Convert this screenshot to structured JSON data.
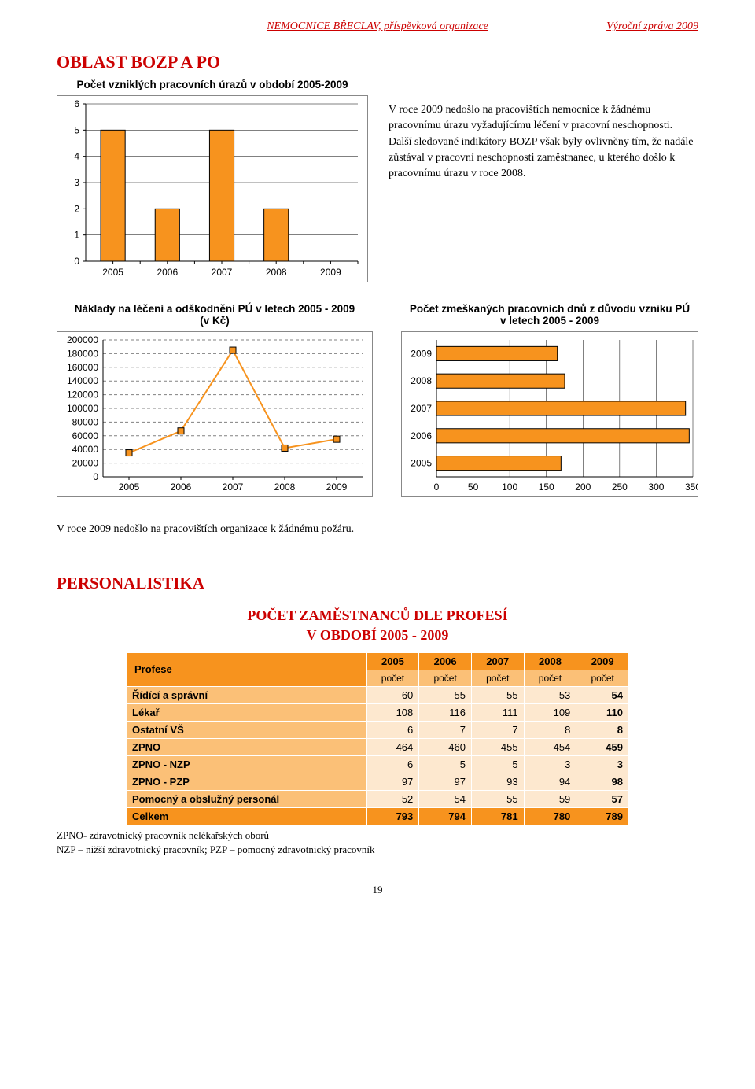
{
  "header": {
    "org": "NEMOCNICE BŘECLAV, příspěvková organizace",
    "right": "Výroční zpráva 2009",
    "page_no": "19"
  },
  "sec_bozp": {
    "title": "OBLAST BOZP A PO",
    "chart_title": "Počet vzniklých pracovních úrazů v období 2005-2009",
    "paragraph": "V roce 2009 nedošlo na pracovištích nemocnice k žádnému pracovnímu úrazu vyžadujícímu léčení v pracovní neschopnosti. Další sledované indikátory BOZP však byly ovlivněny tím, že nadále zůstával v pracovní neschopnosti zaměstnanec, u kterého došlo k pracovnímu úrazu v roce 2008."
  },
  "chart1": {
    "type": "bar",
    "categories": [
      "2005",
      "2006",
      "2007",
      "2008",
      "2009"
    ],
    "values": [
      5,
      2,
      5,
      2,
      0
    ],
    "ymin": 0,
    "ymax": 6,
    "ystep": 1,
    "bar_fill": "#f7931e",
    "bar_stroke": "#000",
    "background": "#ffffff",
    "grid_color": "#000000"
  },
  "chart2": {
    "title": "Náklady na léčení a odškodnění PÚ v letech 2005 - 2009\n(v Kč)",
    "type": "line-marker",
    "categories": [
      "2005",
      "2006",
      "2007",
      "2008",
      "2009"
    ],
    "values": [
      35000,
      67000,
      185000,
      42000,
      55000
    ],
    "ymin": 0,
    "ymax": 200000,
    "ystep": 20000,
    "line_color": "#f7931e",
    "line_width": 2,
    "marker_fill": "#f7931e",
    "marker_stroke": "#000",
    "marker_size": 8,
    "grid_style": "dashed",
    "grid_color": "#808080"
  },
  "chart3": {
    "title": "Počet zmeškaných pracovních dnů z důvodu vzniku PÚ\nv letech 2005 - 2009",
    "type": "hbar",
    "categories": [
      "2009",
      "2008",
      "2007",
      "2006",
      "2005"
    ],
    "values": [
      165,
      175,
      340,
      345,
      170
    ],
    "xmin": 0,
    "xmax": 350,
    "xstep": 50,
    "bar_fill": "#f7931e",
    "bar_stroke": "#000"
  },
  "fire_line": "V roce 2009 nedošlo na pracovištích organizace k žádnému požáru.",
  "sec_personal": {
    "title": "PERSONALISTIKA",
    "subtitle1": "POČET ZAMĚSTNANCŮ DLE PROFESÍ",
    "subtitle2": "V OBDOBÍ 2005 - 2009"
  },
  "table": {
    "corner": "Profese",
    "years": [
      "2005",
      "2006",
      "2007",
      "2008",
      "2009"
    ],
    "sub": "počet",
    "rows": [
      {
        "label": "Řídící a správní",
        "v": [
          "60",
          "55",
          "55",
          "53",
          "54"
        ]
      },
      {
        "label": "Lékař",
        "v": [
          "108",
          "116",
          "111",
          "109",
          "110"
        ]
      },
      {
        "label": "Ostatní VŠ",
        "v": [
          "6",
          "7",
          "7",
          "8",
          "8"
        ]
      },
      {
        "label": "ZPNO",
        "v": [
          "464",
          "460",
          "455",
          "454",
          "459"
        ]
      },
      {
        "label": "ZPNO - NZP",
        "v": [
          "6",
          "5",
          "5",
          "3",
          "3"
        ]
      },
      {
        "label": "ZPNO - PZP",
        "v": [
          "97",
          "97",
          "93",
          "94",
          "98"
        ]
      },
      {
        "label": "Pomocný a obslužný personál",
        "v": [
          "52",
          "54",
          "55",
          "59",
          "57"
        ]
      }
    ],
    "total": {
      "label": "Celkem",
      "v": [
        "793",
        "794",
        "781",
        "780",
        "789"
      ]
    },
    "footnote1": "ZPNO- zdravotnický pracovník nelékařských oborů",
    "footnote2": "NZP – nižší zdravotnický pracovník; PZP – pomocný zdravotnický pracovník"
  }
}
